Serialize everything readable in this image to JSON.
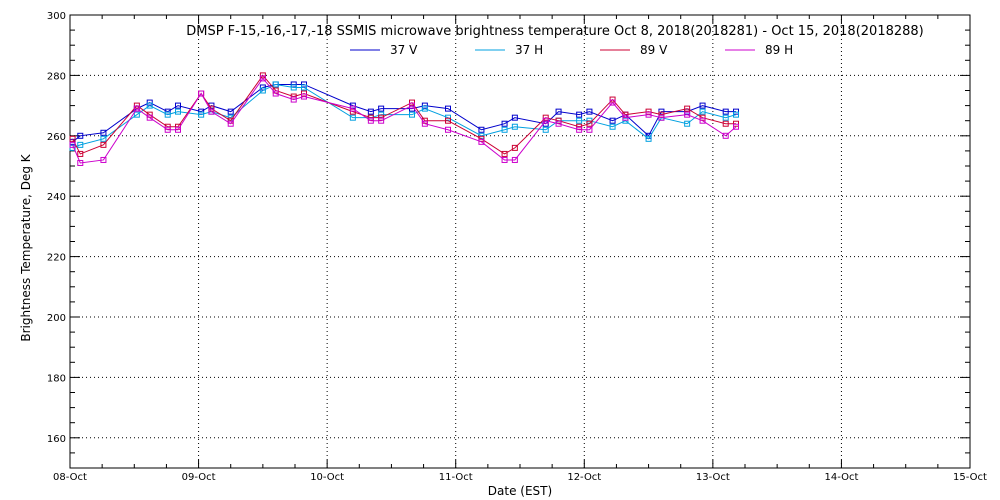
{
  "chart_data": {
    "type": "line",
    "title": "DMSP F-15,-16,-17,-18 SSMIS microwave brightness temperature Oct  8, 2018(2018281) - Oct 15, 2018(2018288)",
    "xlabel": "Date (EST)",
    "ylabel": "Brightness Temperature, Deg K",
    "xlim": [
      0,
      7
    ],
    "ylim": [
      150,
      300
    ],
    "x_ticks": [
      {
        "pos": 0,
        "label": "08-Oct"
      },
      {
        "pos": 1,
        "label": "09-Oct"
      },
      {
        "pos": 2,
        "label": "10-Oct"
      },
      {
        "pos": 3,
        "label": "11-Oct"
      },
      {
        "pos": 4,
        "label": "12-Oct"
      },
      {
        "pos": 5,
        "label": "13-Oct"
      },
      {
        "pos": 6,
        "label": "14-Oct"
      },
      {
        "pos": 7,
        "label": "15-Oct"
      }
    ],
    "y_ticks": [
      160,
      180,
      200,
      220,
      240,
      260,
      280,
      300
    ],
    "grid": true,
    "legend_position": "top-center",
    "series": [
      {
        "name": "37 V",
        "color": "#0000cc",
        "points": [
          [
            0.02,
            258
          ],
          [
            0.08,
            260
          ],
          [
            0.26,
            261
          ],
          [
            0.52,
            269
          ],
          [
            0.62,
            271
          ],
          [
            0.76,
            268
          ],
          [
            0.84,
            270
          ],
          [
            1.02,
            268
          ],
          [
            1.1,
            270
          ],
          [
            1.25,
            268
          ],
          [
            1.5,
            276
          ],
          [
            1.6,
            277
          ],
          [
            1.74,
            277
          ],
          [
            1.82,
            277
          ],
          [
            2.2,
            270
          ],
          [
            2.34,
            268
          ],
          [
            2.42,
            269
          ],
          [
            2.66,
            269
          ],
          [
            2.76,
            270
          ],
          [
            2.94,
            269
          ],
          [
            3.2,
            262
          ],
          [
            3.38,
            264
          ],
          [
            3.46,
            266
          ],
          [
            3.7,
            264
          ],
          [
            3.8,
            268
          ],
          [
            3.96,
            267
          ],
          [
            4.04,
            268
          ],
          [
            4.22,
            265
          ],
          [
            4.32,
            267
          ],
          [
            4.5,
            260
          ],
          [
            4.6,
            268
          ],
          [
            4.8,
            268
          ],
          [
            4.92,
            270
          ],
          [
            5.1,
            268
          ],
          [
            5.18,
            268
          ]
        ]
      },
      {
        "name": "37 H",
        "color": "#00a0e0",
        "points": [
          [
            0.02,
            256
          ],
          [
            0.08,
            257
          ],
          [
            0.26,
            259
          ],
          [
            0.52,
            267
          ],
          [
            0.62,
            270
          ],
          [
            0.76,
            267
          ],
          [
            0.84,
            268
          ],
          [
            1.02,
            267
          ],
          [
            1.1,
            268
          ],
          [
            1.25,
            266
          ],
          [
            1.5,
            275
          ],
          [
            1.6,
            277
          ],
          [
            1.74,
            276
          ],
          [
            1.82,
            276
          ],
          [
            2.2,
            266
          ],
          [
            2.34,
            266
          ],
          [
            2.42,
            267
          ],
          [
            2.66,
            267
          ],
          [
            2.76,
            269
          ],
          [
            2.94,
            266
          ],
          [
            3.2,
            260
          ],
          [
            3.38,
            262
          ],
          [
            3.46,
            263
          ],
          [
            3.7,
            262
          ],
          [
            3.8,
            265
          ],
          [
            3.96,
            265
          ],
          [
            4.04,
            265
          ],
          [
            4.22,
            263
          ],
          [
            4.32,
            265
          ],
          [
            4.5,
            259
          ],
          [
            4.6,
            266
          ],
          [
            4.8,
            264
          ],
          [
            4.92,
            268
          ],
          [
            5.1,
            266
          ],
          [
            5.18,
            267
          ]
        ]
      },
      {
        "name": "89 V",
        "color": "#cc0033",
        "points": [
          [
            0.02,
            259
          ],
          [
            0.08,
            254
          ],
          [
            0.26,
            257
          ],
          [
            0.52,
            270
          ],
          [
            0.62,
            267
          ],
          [
            0.76,
            263
          ],
          [
            0.84,
            263
          ],
          [
            1.02,
            274
          ],
          [
            1.1,
            269
          ],
          [
            1.25,
            265
          ],
          [
            1.5,
            280
          ],
          [
            1.6,
            275
          ],
          [
            1.74,
            273
          ],
          [
            1.82,
            274
          ],
          [
            2.2,
            268
          ],
          [
            2.34,
            266
          ],
          [
            2.42,
            266
          ],
          [
            2.66,
            271
          ],
          [
            2.76,
            265
          ],
          [
            2.94,
            265
          ],
          [
            3.2,
            259
          ],
          [
            3.38,
            254
          ],
          [
            3.46,
            256
          ],
          [
            3.7,
            266
          ],
          [
            3.8,
            265
          ],
          [
            3.96,
            263
          ],
          [
            4.04,
            264
          ],
          [
            4.22,
            272
          ],
          [
            4.32,
            267
          ],
          [
            4.5,
            268
          ],
          [
            4.6,
            267
          ],
          [
            4.8,
            269
          ],
          [
            4.92,
            266
          ],
          [
            5.1,
            264
          ],
          [
            5.18,
            264
          ]
        ]
      },
      {
        "name": "89 H",
        "color": "#cc00cc",
        "points": [
          [
            0.02,
            257
          ],
          [
            0.08,
            251
          ],
          [
            0.26,
            252
          ],
          [
            0.52,
            269
          ],
          [
            0.62,
            266
          ],
          [
            0.76,
            262
          ],
          [
            0.84,
            262
          ],
          [
            1.02,
            274
          ],
          [
            1.1,
            268
          ],
          [
            1.25,
            264
          ],
          [
            1.5,
            279
          ],
          [
            1.6,
            274
          ],
          [
            1.74,
            272
          ],
          [
            1.82,
            273
          ],
          [
            2.2,
            269
          ],
          [
            2.34,
            265
          ],
          [
            2.42,
            265
          ],
          [
            2.66,
            270
          ],
          [
            2.76,
            264
          ],
          [
            2.94,
            262
          ],
          [
            3.2,
            258
          ],
          [
            3.38,
            252
          ],
          [
            3.46,
            252
          ],
          [
            3.7,
            265
          ],
          [
            3.8,
            264
          ],
          [
            3.96,
            262
          ],
          [
            4.04,
            262
          ],
          [
            4.22,
            271
          ],
          [
            4.32,
            266
          ],
          [
            4.5,
            267
          ],
          [
            4.6,
            266
          ],
          [
            4.8,
            267
          ],
          [
            4.92,
            265
          ],
          [
            5.1,
            260
          ],
          [
            5.18,
            263
          ]
        ]
      }
    ]
  }
}
